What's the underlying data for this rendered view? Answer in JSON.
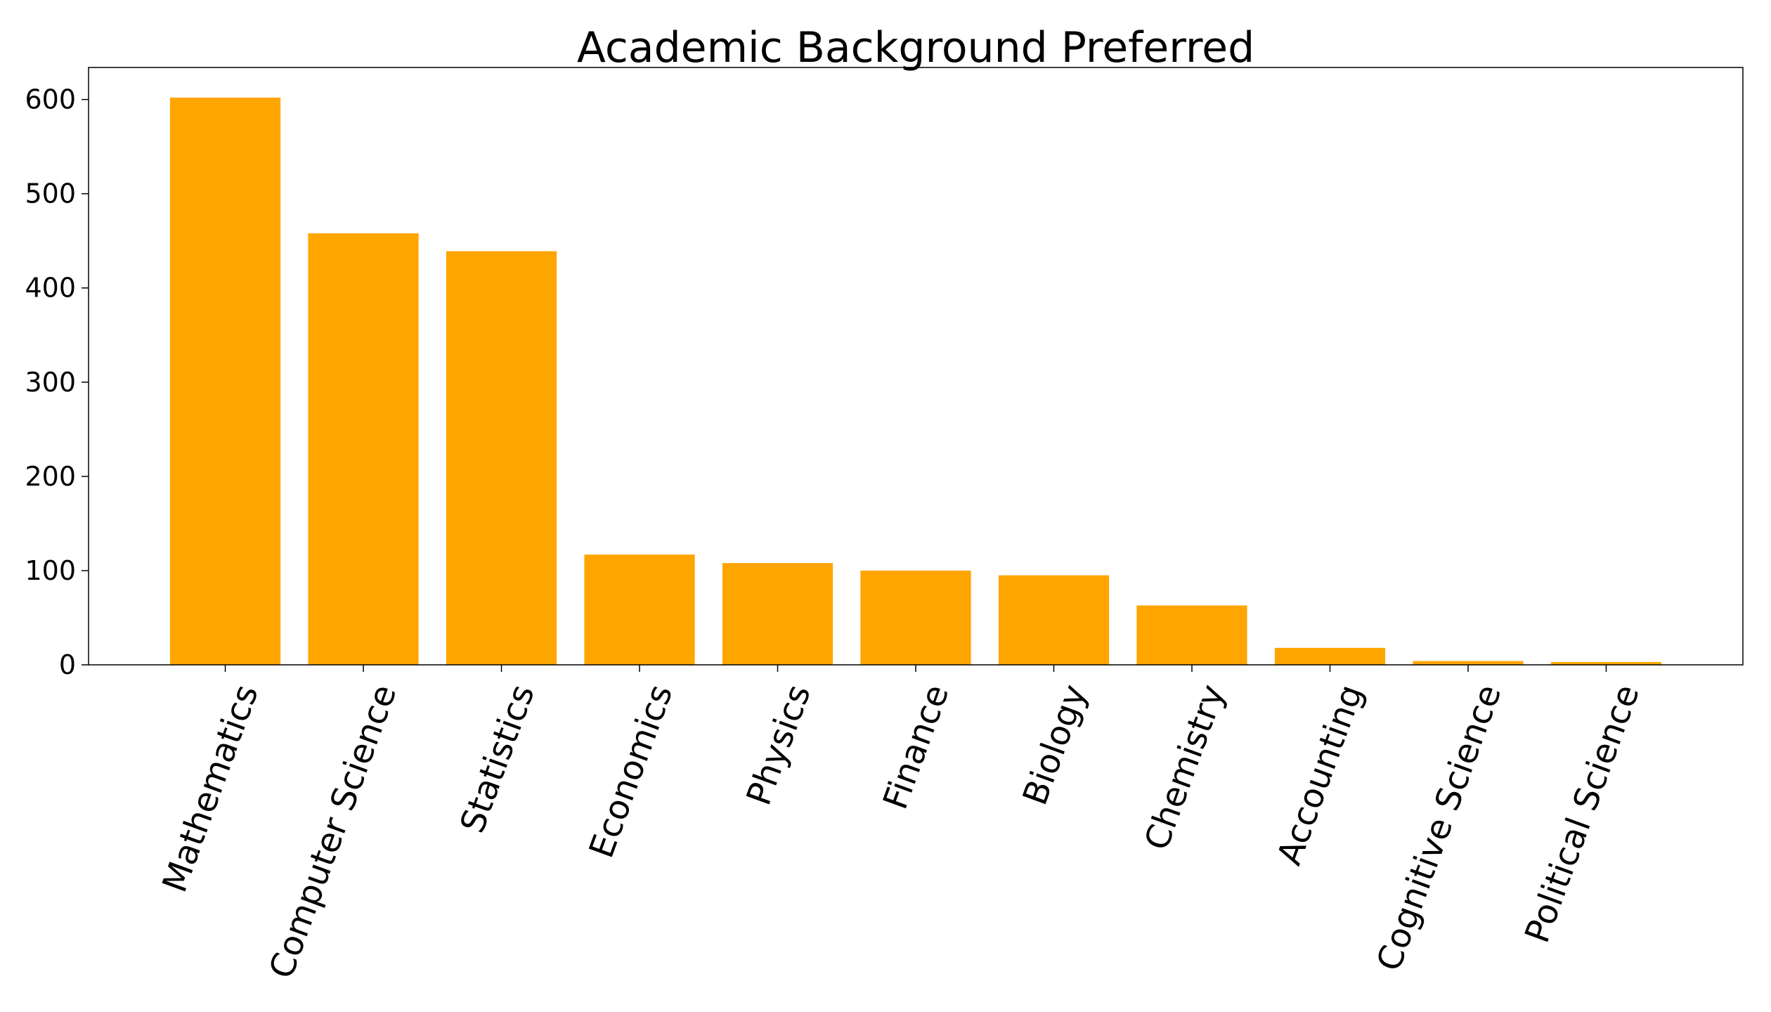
{
  "chart_data": {
    "type": "bar",
    "title": "Academic Background Preferred",
    "xlabel": "",
    "ylabel": "",
    "categories": [
      "Mathematics",
      "Computer Science",
      "Statistics",
      "Economics",
      "Physics",
      "Finance",
      "Biology",
      "Chemistry",
      "Accounting",
      "Cognitive Science",
      "Political Science"
    ],
    "values": [
      602,
      458,
      439,
      117,
      108,
      100,
      95,
      63,
      18,
      4,
      3
    ],
    "ylim": [
      0,
      634
    ],
    "yticks": [
      0,
      100,
      200,
      300,
      400,
      500,
      600
    ],
    "bar_color": "#ffa500",
    "grid": false,
    "legend": "none",
    "x_label_rotation_deg": -70
  }
}
